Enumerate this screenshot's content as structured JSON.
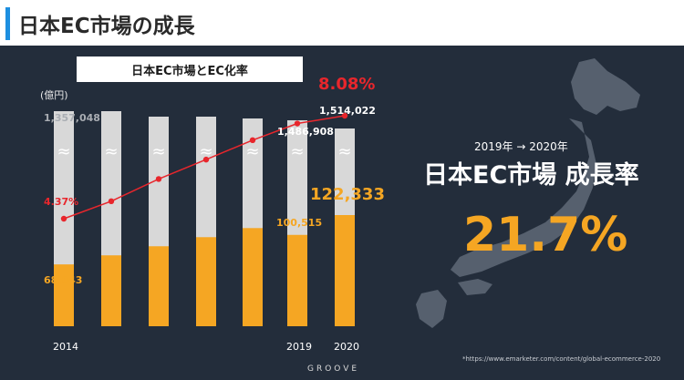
{
  "header": {
    "title": "日本EC市場の成長"
  },
  "chart_box_title": "日本EC市場とEC化率",
  "unit_label": "(億円)",
  "source_note": "*https://www.emarketer.com/content/global-ecommerce-2020",
  "brand": "GROOVE",
  "growth": {
    "period": "2019年 → 2020年",
    "label": "日本EC市場 成長率",
    "value": "21.7%"
  },
  "colors": {
    "accent": "#1d8fe0",
    "bar_total": "#d8d8d8",
    "bar_ec": "#f5a623",
    "line": "#e8262c",
    "background": "#232d3b"
  },
  "chart_data": {
    "type": "bar",
    "categories": [
      "2014",
      "",
      "",
      "",
      "",
      "2019",
      "2020"
    ],
    "series": [
      {
        "values": [
          1357048,
          1357048,
          1357048,
          1357048,
          1357048,
          1486908,
          1514022
        ]
      },
      {
        "values": [
          68043,
          78000,
          88000,
          98000,
          108000,
          100515,
          122333
        ]
      }
    ],
    "line_values": [
      4.37,
      5.0,
      5.8,
      6.5,
      7.2,
      7.8,
      8.08
    ],
    "labels": {
      "total_first": "1,357,048",
      "total_2019": "1,486,908",
      "total_2020": "1,514,022",
      "ec_first": "68,043",
      "ec_2019": "100,515",
      "ec_2020": "122,333",
      "rate_first": "4.37%",
      "rate_2020": "8.08%"
    }
  }
}
